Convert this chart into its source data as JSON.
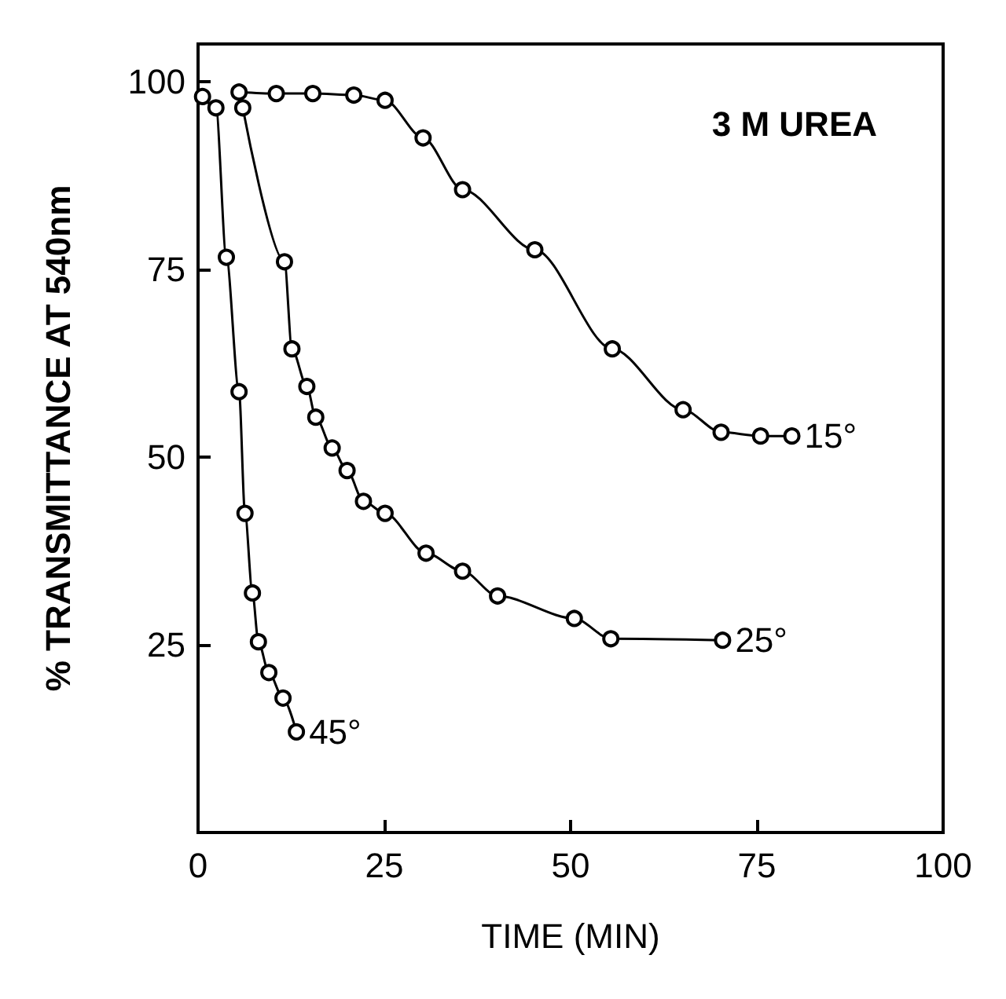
{
  "chart_data": {
    "type": "line",
    "xlabel": "TIME (MIN)",
    "ylabel": "% TRANSMITTANCE AT 540nm",
    "xlim": [
      0,
      100
    ],
    "xticks": [
      0,
      25,
      50,
      75,
      100
    ],
    "ylim": [
      0,
      105
    ],
    "yticks": [
      25,
      50,
      75,
      100
    ],
    "grid": false,
    "legend": false,
    "marker": "circle",
    "line_style": "solid",
    "annotations": [
      "3 M UREA"
    ],
    "series": [
      {
        "name": "15°",
        "color": "#000000",
        "x": [
          5.5,
          10.5,
          15.4,
          20.9,
          25.1,
          30.2,
          35.5,
          45.2,
          55.6,
          65.1,
          70.2,
          75.5,
          79.7
        ],
        "values": [
          98.6,
          98.4,
          98.4,
          98.2,
          97.5,
          92.5,
          85.6,
          77.6,
          64.4,
          56.3,
          53.3,
          52.8,
          52.8
        ]
      },
      {
        "name": "25°",
        "color": "#000000",
        "x": [
          6,
          11.6,
          12.6,
          14.6,
          15.8,
          18,
          20,
          22.2,
          25.1,
          30.6,
          35.5,
          40.2,
          50.5,
          55.4,
          70.4
        ],
        "values": [
          96.5,
          76,
          64.4,
          59.4,
          55.3,
          51.2,
          48.2,
          44.1,
          42.5,
          37.2,
          34.8,
          31.5,
          28.5,
          25.8,
          25.6
        ]
      },
      {
        "name": "45°",
        "color": "#000000",
        "x": [
          0.6,
          2.4,
          3.8,
          5.5,
          6.3,
          7.3,
          8.1,
          9.5,
          11.4,
          13.2
        ],
        "values": [
          98,
          96.5,
          76.6,
          58.7,
          42.5,
          31.9,
          25.4,
          21.3,
          17.9,
          13.4
        ]
      }
    ]
  }
}
